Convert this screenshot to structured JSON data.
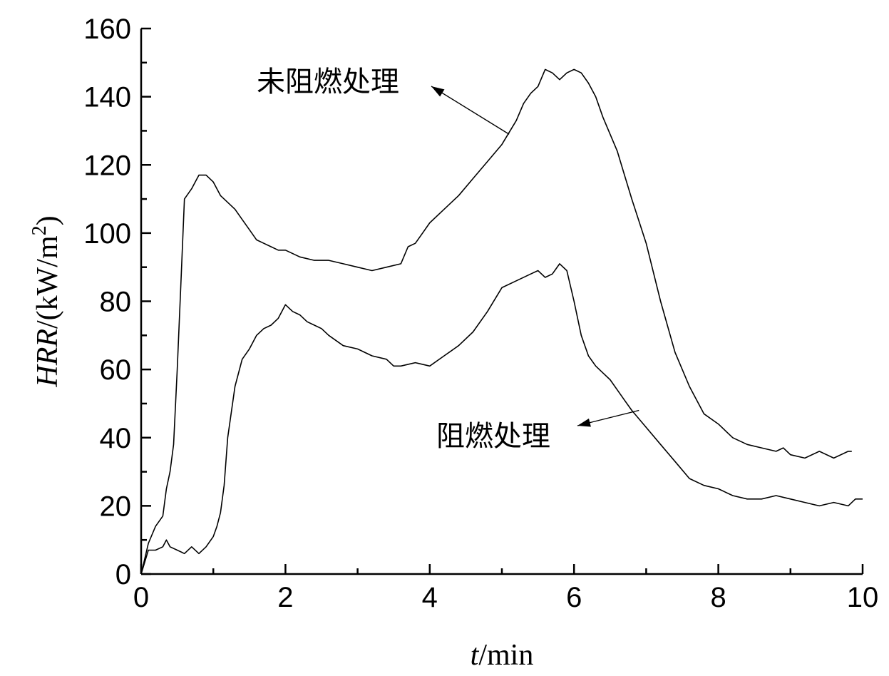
{
  "chart_data": {
    "type": "line",
    "xlabel": "t/min",
    "xlabel_parts": {
      "var": "t",
      "unit": "/min"
    },
    "ylabel": "HRR/(kW/m2)",
    "ylabel_parts": {
      "var": "HRR",
      "unit": "/(kW/m",
      "sup": "2",
      "close": ")"
    },
    "xlim": [
      0,
      10
    ],
    "ylim": [
      0,
      160
    ],
    "xticks": [
      0,
      2,
      4,
      6,
      8,
      10
    ],
    "yticks": [
      0,
      20,
      40,
      60,
      80,
      100,
      120,
      140,
      160
    ],
    "grid": false,
    "series": [
      {
        "name": "未阻燃处理",
        "x": [
          0,
          0.1,
          0.2,
          0.3,
          0.35,
          0.4,
          0.45,
          0.5,
          0.55,
          0.6,
          0.7,
          0.8,
          0.9,
          1.0,
          1.1,
          1.2,
          1.3,
          1.4,
          1.5,
          1.6,
          1.7,
          1.8,
          1.9,
          2.0,
          2.2,
          2.4,
          2.6,
          2.8,
          3.0,
          3.2,
          3.4,
          3.6,
          3.7,
          3.8,
          3.9,
          4.0,
          4.2,
          4.4,
          4.6,
          4.8,
          5.0,
          5.2,
          5.3,
          5.4,
          5.5,
          5.6,
          5.7,
          5.8,
          5.9,
          6.0,
          6.1,
          6.2,
          6.3,
          6.4,
          6.5,
          6.6,
          6.7,
          6.8,
          7.0,
          7.2,
          7.4,
          7.6,
          7.8,
          8.0,
          8.2,
          8.4,
          8.6,
          8.8,
          8.9,
          9.0,
          9.2,
          9.4,
          9.6,
          9.8,
          9.85
        ],
        "y": [
          0,
          9,
          14,
          17,
          25,
          30,
          38,
          60,
          85,
          110,
          113,
          117,
          117,
          115,
          111,
          109,
          107,
          104,
          101,
          98,
          97,
          96,
          95,
          95,
          93,
          92,
          92,
          91,
          90,
          89,
          90,
          91,
          96,
          97,
          100,
          103,
          107,
          111,
          116,
          121,
          126,
          133,
          138,
          141,
          143,
          148,
          147,
          145,
          147,
          148,
          147,
          144,
          140,
          134,
          129,
          124,
          117,
          110,
          97,
          80,
          65,
          55,
          47,
          44,
          40,
          38,
          37,
          36,
          37,
          35,
          34,
          36,
          34,
          36,
          36
        ]
      },
      {
        "name": "阻燃处理",
        "x": [
          0,
          0.1,
          0.2,
          0.3,
          0.35,
          0.4,
          0.5,
          0.6,
          0.7,
          0.8,
          0.9,
          1.0,
          1.05,
          1.1,
          1.15,
          1.2,
          1.3,
          1.4,
          1.5,
          1.6,
          1.7,
          1.8,
          1.9,
          2.0,
          2.1,
          2.2,
          2.3,
          2.4,
          2.5,
          2.6,
          2.8,
          3.0,
          3.2,
          3.4,
          3.5,
          3.6,
          3.8,
          4.0,
          4.2,
          4.4,
          4.6,
          4.8,
          5.0,
          5.2,
          5.4,
          5.5,
          5.6,
          5.7,
          5.8,
          5.9,
          6.0,
          6.1,
          6.2,
          6.3,
          6.4,
          6.5,
          6.6,
          6.7,
          6.8,
          7.0,
          7.2,
          7.4,
          7.6,
          7.8,
          8.0,
          8.2,
          8.4,
          8.6,
          8.8,
          9.0,
          9.2,
          9.4,
          9.6,
          9.8,
          9.9,
          10.0
        ],
        "y": [
          0,
          7,
          7,
          8,
          10,
          8,
          7,
          6,
          8,
          6,
          8,
          11,
          14,
          18,
          26,
          40,
          55,
          63,
          66,
          70,
          72,
          73,
          75,
          79,
          77,
          76,
          74,
          73,
          72,
          70,
          67,
          66,
          64,
          63,
          61,
          61,
          62,
          61,
          64,
          67,
          71,
          77,
          84,
          86,
          88,
          89,
          87,
          88,
          91,
          89,
          80,
          70,
          64,
          61,
          59,
          57,
          54,
          51,
          48,
          43,
          38,
          33,
          28,
          26,
          25,
          23,
          22,
          22,
          23,
          22,
          21,
          20,
          21,
          20,
          22,
          22
        ]
      }
    ],
    "annotations": [
      {
        "text": "未阻燃处理",
        "target_series": "未阻燃处理",
        "point_x": 5.1,
        "point_y": 129
      },
      {
        "text": "阻燃处理",
        "target_series": "阻燃处理",
        "point_x": 6.9,
        "point_y": 48
      }
    ]
  }
}
